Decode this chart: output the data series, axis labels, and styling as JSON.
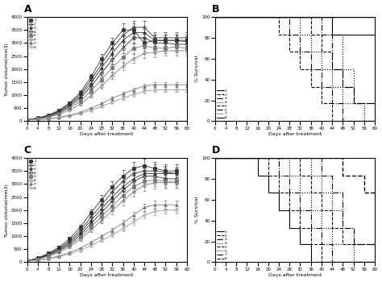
{
  "days_A": [
    0,
    4,
    8,
    12,
    16,
    20,
    24,
    28,
    32,
    36,
    40,
    44,
    48,
    52,
    56,
    60
  ],
  "panel_A_groups": {
    "1": [
      50,
      130,
      230,
      420,
      700,
      1100,
      1700,
      2400,
      3000,
      3500,
      3500,
      3000,
      3100,
      3100,
      3100,
      3100
    ],
    "2": [
      50,
      120,
      210,
      390,
      660,
      1020,
      1580,
      2200,
      2800,
      3300,
      3600,
      3600,
      3200,
      3200,
      3200,
      3200
    ],
    "3": [
      50,
      115,
      200,
      360,
      610,
      950,
      1450,
      2050,
      2600,
      3100,
      3400,
      3400,
      3100,
      3100,
      3100,
      3050
    ],
    "4": [
      50,
      110,
      185,
      330,
      560,
      870,
      1330,
      1850,
      2350,
      2800,
      3200,
      3200,
      3000,
      3000,
      2950,
      2950
    ],
    "5": [
      50,
      100,
      170,
      300,
      500,
      760,
      1150,
      1600,
      2050,
      2450,
      2800,
      2900,
      2800,
      2800,
      2850,
      2800
    ],
    "6": [
      50,
      90,
      150,
      260,
      430,
      650,
      980,
      1350,
      1750,
      2100,
      2400,
      2600,
      2650,
      2700,
      2700,
      2700
    ],
    "7": [
      50,
      60,
      90,
      150,
      230,
      340,
      500,
      680,
      880,
      1050,
      1200,
      1350,
      1400,
      1400,
      1400,
      1400
    ],
    "8": [
      50,
      55,
      80,
      130,
      200,
      290,
      420,
      570,
      730,
      880,
      1020,
      1150,
      1200,
      1200,
      1200,
      1200
    ]
  },
  "days_C": [
    0,
    4,
    8,
    12,
    16,
    20,
    24,
    28,
    32,
    36,
    40,
    44,
    48,
    52,
    56
  ],
  "panel_C_groups": {
    "1": [
      50,
      160,
      340,
      580,
      900,
      1350,
      1900,
      2400,
      2900,
      3300,
      3600,
      3700,
      3600,
      3500,
      3500
    ],
    "2": [
      50,
      150,
      310,
      530,
      820,
      1230,
      1730,
      2200,
      2700,
      3100,
      3400,
      3500,
      3500,
      3450,
      3400
    ],
    "3": [
      50,
      140,
      290,
      490,
      760,
      1140,
      1600,
      2050,
      2500,
      2900,
      3200,
      3400,
      3400,
      3400,
      3400
    ],
    "4": [
      50,
      130,
      270,
      450,
      700,
      1050,
      1480,
      1900,
      2350,
      2750,
      3100,
      3300,
      3300,
      3200,
      3200
    ],
    "5": [
      50,
      120,
      250,
      420,
      650,
      970,
      1360,
      1750,
      2150,
      2550,
      2900,
      3100,
      3150,
      3100,
      3100
    ],
    "6": [
      50,
      110,
      225,
      380,
      590,
      880,
      1240,
      1600,
      1980,
      2350,
      2700,
      2950,
      3050,
      3050,
      3050
    ],
    "7": [
      50,
      75,
      145,
      240,
      370,
      540,
      760,
      990,
      1230,
      1500,
      1800,
      2100,
      2200,
      2200,
      2200
    ],
    "8": [
      50,
      65,
      125,
      205,
      315,
      460,
      640,
      840,
      1050,
      1280,
      1550,
      1800,
      1950,
      2000,
      2000
    ]
  },
  "survival_B": {
    "8": {
      "days": [
        0,
        60
      ],
      "surv": [
        100,
        100
      ],
      "ls": "-",
      "lw": 1.0,
      "color": "black"
    },
    "1": {
      "days": [
        0,
        44,
        44,
        60
      ],
      "surv": [
        100,
        100,
        83,
        83
      ],
      "ls": "-",
      "lw": 0.8,
      "color": "black"
    },
    "7": {
      "days": [
        0,
        44,
        44,
        48,
        48,
        52,
        52,
        60
      ],
      "surv": [
        100,
        100,
        83,
        83,
        50,
        50,
        17,
        17
      ],
      "ls": ":",
      "lw": 0.8,
      "color": "black"
    },
    "6": {
      "days": [
        0,
        40,
        40,
        44,
        44,
        48,
        48,
        52,
        52,
        60
      ],
      "surv": [
        100,
        100,
        83,
        83,
        50,
        50,
        33,
        33,
        17,
        17
      ],
      "ls": "-.",
      "lw": 0.8,
      "color": "black"
    },
    "5": {
      "days": [
        0,
        36,
        36,
        40,
        40,
        44,
        44,
        48,
        48,
        52,
        52,
        60
      ],
      "surv": [
        100,
        100,
        83,
        83,
        67,
        67,
        50,
        50,
        33,
        33,
        17,
        17
      ],
      "ls": "--",
      "lw": 0.8,
      "color": "black"
    },
    "4": {
      "days": [
        0,
        32,
        32,
        36,
        36,
        40,
        40,
        44,
        44,
        48,
        48,
        56,
        56,
        60
      ],
      "surv": [
        100,
        100,
        83,
        83,
        67,
        67,
        50,
        50,
        33,
        33,
        17,
        17,
        0,
        0
      ],
      "ls": ":",
      "lw": 0.8,
      "color": "black"
    },
    "3": {
      "days": [
        0,
        28,
        28,
        32,
        32,
        36,
        36,
        40,
        40,
        44,
        44,
        48,
        48,
        60
      ],
      "surv": [
        100,
        100,
        83,
        83,
        67,
        67,
        50,
        50,
        33,
        33,
        17,
        17,
        0,
        0
      ],
      "ls": "-.",
      "lw": 0.8,
      "color": "black"
    },
    "2": {
      "days": [
        0,
        24,
        24,
        28,
        28,
        32,
        32,
        36,
        36,
        40,
        40,
        44,
        44,
        60
      ],
      "surv": [
        100,
        100,
        83,
        83,
        67,
        67,
        50,
        50,
        33,
        33,
        17,
        17,
        0,
        0
      ],
      "ls": "--",
      "lw": 0.8,
      "color": "black"
    }
  },
  "survival_D": {
    "8": {
      "days": [
        0,
        48,
        48,
        56,
        56,
        60
      ],
      "surv": [
        100,
        100,
        83,
        83,
        67,
        67
      ],
      "ls": "--",
      "lw": 1.0,
      "color": "black"
    },
    "7": {
      "days": [
        0,
        40,
        40,
        44,
        44,
        48,
        48,
        52,
        52,
        60
      ],
      "surv": [
        100,
        100,
        83,
        83,
        67,
        67,
        33,
        33,
        17,
        17
      ],
      "ls": "-.",
      "lw": 0.8,
      "color": "black"
    },
    "6": {
      "days": [
        0,
        36,
        36,
        40,
        40,
        44,
        44,
        48,
        48,
        52,
        52,
        60
      ],
      "surv": [
        100,
        100,
        83,
        83,
        67,
        67,
        50,
        50,
        33,
        33,
        17,
        17
      ],
      "ls": ":",
      "lw": 0.8,
      "color": "black"
    },
    "5": {
      "days": [
        0,
        32,
        32,
        36,
        36,
        40,
        40,
        44,
        44,
        48,
        48,
        60
      ],
      "surv": [
        100,
        100,
        83,
        83,
        67,
        67,
        50,
        50,
        33,
        33,
        17,
        17
      ],
      "ls": "--",
      "lw": 0.8,
      "color": "black"
    },
    "4": {
      "days": [
        0,
        28,
        28,
        32,
        32,
        36,
        36,
        40,
        40,
        44,
        44,
        52,
        52,
        60
      ],
      "surv": [
        100,
        100,
        83,
        83,
        67,
        67,
        50,
        50,
        33,
        33,
        17,
        17,
        0,
        0
      ],
      "ls": ":",
      "lw": 0.8,
      "color": "black"
    },
    "3": {
      "days": [
        0,
        24,
        24,
        28,
        28,
        32,
        32,
        36,
        36,
        40,
        40,
        44,
        44,
        60
      ],
      "surv": [
        100,
        100,
        83,
        83,
        67,
        67,
        50,
        50,
        33,
        33,
        17,
        17,
        0,
        0
      ],
      "ls": "-.",
      "lw": 0.8,
      "color": "black"
    },
    "2": {
      "days": [
        0,
        20,
        20,
        24,
        24,
        28,
        28,
        32,
        32,
        36,
        36,
        40,
        40,
        60
      ],
      "surv": [
        100,
        100,
        83,
        83,
        67,
        67,
        50,
        50,
        33,
        33,
        17,
        17,
        0,
        0
      ],
      "ls": "--",
      "lw": 0.8,
      "color": "black"
    },
    "1": {
      "days": [
        0,
        16,
        16,
        20,
        20,
        24,
        24,
        28,
        28,
        32,
        32,
        36,
        36,
        60
      ],
      "surv": [
        100,
        100,
        83,
        83,
        67,
        67,
        50,
        50,
        33,
        33,
        17,
        17,
        0,
        0
      ],
      "ls": "-",
      "lw": 0.8,
      "color": "black"
    }
  },
  "markers": {
    "1": {
      "marker": "s",
      "fill": true
    },
    "2": {
      "marker": "o",
      "fill": false
    },
    "3": {
      "marker": "^",
      "fill": true
    },
    "4": {
      "marker": "D",
      "fill": false
    },
    "5": {
      "marker": "s",
      "fill": true
    },
    "6": {
      "marker": "o",
      "fill": false
    },
    "7": {
      "marker": "^",
      "fill": true
    },
    "8": {
      "marker": "o",
      "fill": false
    }
  },
  "line_colors": {
    "1": "#333333",
    "2": "#333333",
    "3": "#333333",
    "4": "#333333",
    "5": "#777777",
    "6": "#777777",
    "7": "#777777",
    "8": "#999999"
  },
  "ylim_tumor": [
    0,
    4000
  ],
  "yticks_tumor": [
    0,
    500,
    1000,
    1500,
    2000,
    2500,
    3000,
    3500,
    4000
  ],
  "xlim_tumor": [
    0,
    60
  ],
  "xticks": [
    0,
    4,
    8,
    12,
    16,
    20,
    24,
    28,
    32,
    36,
    40,
    44,
    48,
    52,
    56,
    60
  ],
  "ylim_surv": [
    0,
    100
  ],
  "yticks_surv": [
    0,
    20,
    40,
    60,
    80,
    100
  ],
  "legend_labels_AB": [
    "1",
    "2",
    "3",
    "4",
    "5",
    "6",
    "7",
    "8"
  ],
  "legend_labels_surv_B": [
    "1",
    "2",
    "3",
    "4",
    "5",
    "6",
    "7",
    "8"
  ],
  "xlabel": "Days after treatment",
  "ylabel_tumor": "Tumor volume(mm3)",
  "ylabel_surv": "% Survival",
  "background_color": "#ffffff"
}
